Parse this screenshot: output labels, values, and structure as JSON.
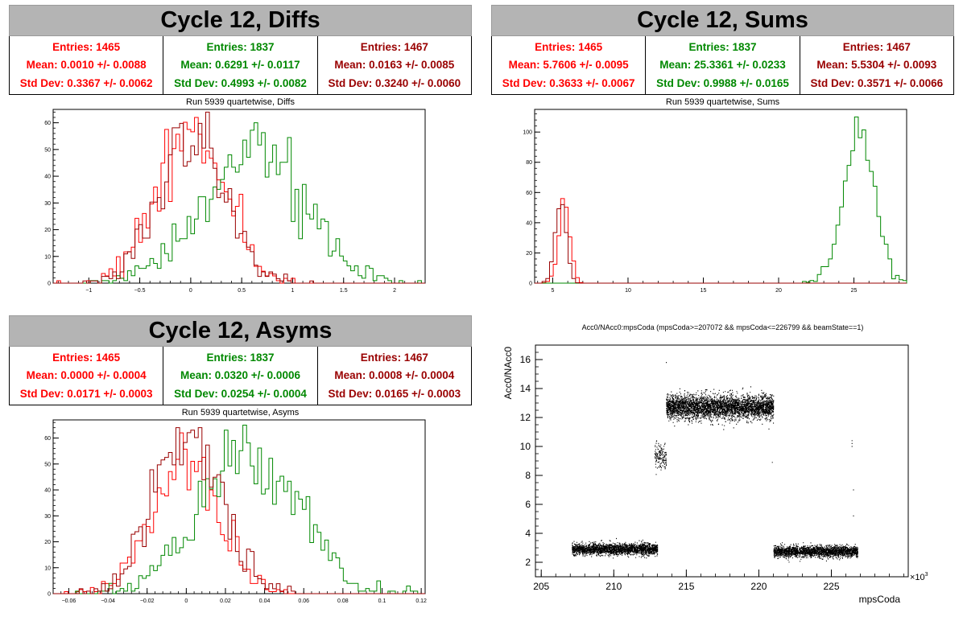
{
  "panels": {
    "diffs": {
      "title": "Cycle 12, Diffs",
      "stats": [
        {
          "entries": "Entries: 1465",
          "mean": "Mean: 0.0010 +/- 0.0088",
          "std": "Std Dev: 0.3367 +/- 0.0062",
          "color": "#ff0000"
        },
        {
          "entries": "Entries: 1837",
          "mean": "Mean: 0.6291 +/- 0.0117",
          "std": "Std Dev: 0.4993 +/- 0.0082",
          "color": "#008800"
        },
        {
          "entries": "Entries: 1467",
          "mean": "Mean: 0.0163 +/- 0.0085",
          "std": "Std Dev: 0.3240 +/- 0.0060",
          "color": "#990000"
        }
      ],
      "subtitle": "Run 5939 quartetwise, Diffs"
    },
    "sums": {
      "title": "Cycle 12, Sums",
      "stats": [
        {
          "entries": "Entries: 1465",
          "mean": "Mean: 5.7606 +/- 0.0095",
          "std": "Std Dev: 0.3633 +/- 0.0067",
          "color": "#ff0000"
        },
        {
          "entries": "Entries: 1837",
          "mean": "Mean: 25.3361 +/- 0.0233",
          "std": "Std Dev: 0.9988 +/- 0.0165",
          "color": "#008800"
        },
        {
          "entries": "Entries: 1467",
          "mean": "Mean: 5.5304 +/- 0.0093",
          "std": "Std Dev: 0.3571 +/- 0.0066",
          "color": "#990000"
        }
      ],
      "subtitle": "Run 5939 quartetwise, Sums"
    },
    "asyms": {
      "title": "Cycle 12, Asyms",
      "stats": [
        {
          "entries": "Entries: 1465",
          "mean": "Mean: 0.0000 +/- 0.0004",
          "std": "Std Dev: 0.0171 +/- 0.0003",
          "color": "#ff0000"
        },
        {
          "entries": "Entries: 1837",
          "mean": "Mean: 0.0320 +/- 0.0006",
          "std": "Std Dev: 0.0254 +/- 0.0004",
          "color": "#008800"
        },
        {
          "entries": "Entries: 1467",
          "mean": "Mean: 0.0008 +/- 0.0004",
          "std": "Std Dev: 0.0165 +/- 0.0003",
          "color": "#990000"
        }
      ],
      "subtitle": "Run 5939 quartetwise, Asyms"
    },
    "scatter": {
      "title": "Acc0/NAcc0:mpsCoda (mpsCoda>=207072 && mpsCoda<=226799 && beamState==1)"
    }
  },
  "chart_data": [
    {
      "type": "histogram",
      "name": "diffs",
      "xlim": [
        -1.35,
        2.3
      ],
      "ylim": [
        0,
        65
      ],
      "xticks": [
        -1,
        -0.5,
        0,
        0.5,
        1,
        1.5,
        2
      ],
      "xtick_labels": [
        "−1",
        "−0.5",
        "0",
        "0.5",
        "1",
        "1.5",
        "2"
      ],
      "yticks": [
        0,
        10,
        20,
        30,
        40,
        50,
        60
      ],
      "series": [
        {
          "color": "#ff0000",
          "mean": 0.001,
          "std": 0.3367,
          "entries": 1465,
          "peak": 62
        },
        {
          "color": "#008800",
          "mean": 0.6291,
          "std": 0.4993,
          "entries": 1837,
          "peak": 60
        },
        {
          "color": "#990000",
          "mean": 0.0163,
          "std": 0.324,
          "entries": 1467,
          "peak": 64
        }
      ]
    },
    {
      "type": "histogram",
      "name": "sums",
      "xlim": [
        3.8,
        28.5
      ],
      "ylim": [
        0,
        115
      ],
      "xticks": [
        5,
        10,
        15,
        20,
        25
      ],
      "xtick_labels": [
        "5",
        "10",
        "15",
        "20",
        "25"
      ],
      "yticks": [
        0,
        20,
        40,
        60,
        80,
        100
      ],
      "series": [
        {
          "color": "#ff0000",
          "mean": 5.7606,
          "std": 0.3633,
          "entries": 1465,
          "peak": 56
        },
        {
          "color": "#008800",
          "mean": 25.3361,
          "std": 0.9988,
          "entries": 1837,
          "peak": 110
        },
        {
          "color": "#990000",
          "mean": 5.5304,
          "std": 0.3571,
          "entries": 1467,
          "peak": 52
        }
      ]
    },
    {
      "type": "histogram",
      "name": "asyms",
      "xlim": [
        -0.068,
        0.122
      ],
      "ylim": [
        0,
        67
      ],
      "xticks": [
        -0.06,
        -0.04,
        -0.02,
        0,
        0.02,
        0.04,
        0.06,
        0.08,
        0.1,
        0.12
      ],
      "xtick_labels": [
        "−0.06",
        "−0.04",
        "−0.02",
        "0",
        "0.02",
        "0.04",
        "0.06",
        "0.08",
        "0.1",
        "0.12"
      ],
      "yticks": [
        0,
        10,
        20,
        30,
        40,
        50,
        60
      ],
      "series": [
        {
          "color": "#ff0000",
          "mean": 0.0,
          "std": 0.0171,
          "entries": 1465,
          "peak": 62
        },
        {
          "color": "#008800",
          "mean": 0.032,
          "std": 0.0254,
          "entries": 1837,
          "peak": 65
        },
        {
          "color": "#990000",
          "mean": 0.0008,
          "std": 0.0165,
          "entries": 1467,
          "peak": 64
        }
      ]
    },
    {
      "type": "scatter",
      "name": "scatter",
      "xlabel": "mpsCoda",
      "ylabel": "Acc0/NAcc0",
      "x_multiplier_label": "×10",
      "x_multiplier_exp": "3",
      "xlim": [
        204.6,
        230.3
      ],
      "ylim": [
        1.0,
        17.0
      ],
      "xticks": [
        205,
        210,
        215,
        220,
        225
      ],
      "yticks": [
        2,
        4,
        6,
        8,
        10,
        12,
        14,
        16
      ],
      "clusters": [
        {
          "x": [
            207.1,
            213.0
          ],
          "y_center": 2.9,
          "y_spread": 0.35,
          "density": 0.55
        },
        {
          "x": [
            212.8,
            213.6
          ],
          "y_center": 9.3,
          "y_spread": 0.85,
          "density": 0.25
        },
        {
          "x": [
            213.6,
            221.0
          ],
          "y_center": 12.7,
          "y_spread": 0.75,
          "density": 0.75
        },
        {
          "x": [
            221.0,
            226.8
          ],
          "y_center": 2.75,
          "y_spread": 0.35,
          "density": 0.55
        }
      ]
    }
  ]
}
